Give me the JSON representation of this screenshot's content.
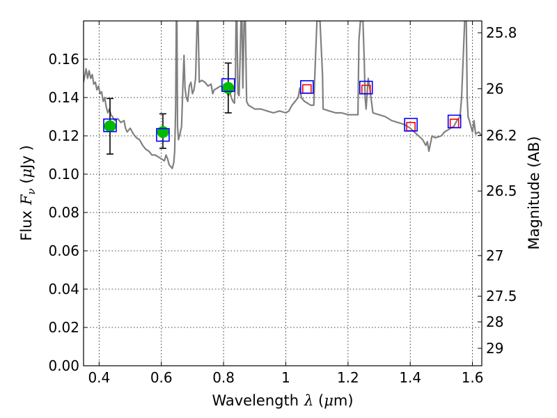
{
  "chart_data": {
    "type": "scatter",
    "xlabel": {
      "prefix": "Wavelength",
      "symbol": "λ",
      "unit_open": " (",
      "unit_mu": "μ",
      "unit_rest": "m)"
    },
    "ylabel": {
      "prefix": "Flux",
      "symbol": "F",
      "subscript": "ν",
      "unit_open": " (",
      "unit_mu": "μ",
      "unit_rest": "Jy )"
    },
    "y2label": "Magnitude (AB)",
    "xlim": [
      0.35,
      1.63
    ],
    "ylim": [
      0.0,
      0.18
    ],
    "x_ticks": [
      0.4,
      0.6,
      0.8,
      1.0,
      1.2,
      1.4,
      1.6
    ],
    "x_tick_labels": [
      "0.4",
      "0.6",
      "0.8",
      "1",
      "1.2",
      "1.4",
      "1.6"
    ],
    "y_ticks": [
      0.0,
      0.02,
      0.04,
      0.06,
      0.08,
      0.1,
      0.12,
      0.14,
      0.16
    ],
    "y_tick_labels": [
      "0.00",
      "0.02",
      "0.04",
      "0.06",
      "0.08",
      "0.10",
      "0.12",
      "0.14",
      "0.16"
    ],
    "y2_ticks": [
      {
        "label": "25.8",
        "flux": 0.1738
      },
      {
        "label": "26",
        "flux": 0.1446
      },
      {
        "label": "26.2",
        "flux": 0.1202
      },
      {
        "label": "26.5",
        "flux": 0.0912
      },
      {
        "label": "27",
        "flux": 0.0575
      },
      {
        "label": "27.5",
        "flux": 0.0363
      },
      {
        "label": "28",
        "flux": 0.0229
      },
      {
        "label": "29",
        "flux": 0.0091
      }
    ],
    "grid": true,
    "series": [
      {
        "style": "line",
        "color": "#808080",
        "points": [
          [
            0.35,
            0.148
          ],
          [
            0.358,
            0.155
          ],
          [
            0.363,
            0.15
          ],
          [
            0.368,
            0.154
          ],
          [
            0.373,
            0.15
          ],
          [
            0.378,
            0.152
          ],
          [
            0.383,
            0.147
          ],
          [
            0.388,
            0.148
          ],
          [
            0.393,
            0.144
          ],
          [
            0.398,
            0.146
          ],
          [
            0.403,
            0.142
          ],
          [
            0.408,
            0.143
          ],
          [
            0.413,
            0.138
          ],
          [
            0.418,
            0.14
          ],
          [
            0.423,
            0.135
          ],
          [
            0.428,
            0.132
          ],
          [
            0.433,
            0.134
          ],
          [
            0.438,
            0.131
          ],
          [
            0.443,
            0.13
          ],
          [
            0.45,
            0.128
          ],
          [
            0.46,
            0.129
          ],
          [
            0.47,
            0.127
          ],
          [
            0.48,
            0.128
          ],
          [
            0.485,
            0.124
          ],
          [
            0.49,
            0.122
          ],
          [
            0.5,
            0.124
          ],
          [
            0.51,
            0.121
          ],
          [
            0.52,
            0.119
          ],
          [
            0.53,
            0.118
          ],
          [
            0.54,
            0.115
          ],
          [
            0.55,
            0.113
          ],
          [
            0.56,
            0.112
          ],
          [
            0.57,
            0.11
          ],
          [
            0.58,
            0.11
          ],
          [
            0.59,
            0.109
          ],
          [
            0.6,
            0.108
          ],
          [
            0.61,
            0.107
          ],
          [
            0.615,
            0.11
          ],
          [
            0.62,
            0.108
          ],
          [
            0.625,
            0.105
          ],
          [
            0.63,
            0.104
          ],
          [
            0.635,
            0.103
          ],
          [
            0.64,
            0.106
          ],
          [
            0.643,
            0.112
          ],
          [
            0.646,
            0.135
          ],
          [
            0.648,
            0.18
          ],
          [
            0.65,
            0.18
          ],
          [
            0.652,
            0.125
          ],
          [
            0.655,
            0.118
          ],
          [
            0.66,
            0.121
          ],
          [
            0.665,
            0.125
          ],
          [
            0.67,
            0.15
          ],
          [
            0.673,
            0.162
          ],
          [
            0.676,
            0.145
          ],
          [
            0.68,
            0.14
          ],
          [
            0.685,
            0.138
          ],
          [
            0.69,
            0.146
          ],
          [
            0.695,
            0.148
          ],
          [
            0.7,
            0.142
          ],
          [
            0.705,
            0.144
          ],
          [
            0.71,
            0.15
          ],
          [
            0.715,
            0.18
          ],
          [
            0.718,
            0.18
          ],
          [
            0.722,
            0.148
          ],
          [
            0.73,
            0.149
          ],
          [
            0.74,
            0.148
          ],
          [
            0.75,
            0.146
          ],
          [
            0.76,
            0.147
          ],
          [
            0.765,
            0.142
          ],
          [
            0.77,
            0.144
          ],
          [
            0.78,
            0.145
          ],
          [
            0.79,
            0.146
          ],
          [
            0.8,
            0.145
          ],
          [
            0.81,
            0.143
          ],
          [
            0.815,
            0.141
          ],
          [
            0.82,
            0.143
          ],
          [
            0.825,
            0.14
          ],
          [
            0.83,
            0.138
          ],
          [
            0.835,
            0.137
          ],
          [
            0.838,
            0.15
          ],
          [
            0.84,
            0.18
          ],
          [
            0.843,
            0.18
          ],
          [
            0.846,
            0.142
          ],
          [
            0.85,
            0.141
          ],
          [
            0.853,
            0.16
          ],
          [
            0.856,
            0.18
          ],
          [
            0.859,
            0.18
          ],
          [
            0.862,
            0.145
          ],
          [
            0.866,
            0.18
          ],
          [
            0.87,
            0.18
          ],
          [
            0.874,
            0.138
          ],
          [
            0.88,
            0.136
          ],
          [
            0.89,
            0.135
          ],
          [
            0.9,
            0.134
          ],
          [
            0.92,
            0.134
          ],
          [
            0.94,
            0.133
          ],
          [
            0.96,
            0.132
          ],
          [
            0.98,
            0.133
          ],
          [
            1.0,
            0.132
          ],
          [
            1.01,
            0.133
          ],
          [
            1.02,
            0.136
          ],
          [
            1.03,
            0.138
          ],
          [
            1.04,
            0.14
          ],
          [
            1.045,
            0.145
          ],
          [
            1.05,
            0.14
          ],
          [
            1.06,
            0.138
          ],
          [
            1.07,
            0.137
          ],
          [
            1.08,
            0.136
          ],
          [
            1.09,
            0.136
          ],
          [
            1.093,
            0.15
          ],
          [
            1.1,
            0.18
          ],
          [
            1.11,
            0.18
          ],
          [
            1.118,
            0.152
          ],
          [
            1.12,
            0.134
          ],
          [
            1.14,
            0.133
          ],
          [
            1.16,
            0.132
          ],
          [
            1.18,
            0.132
          ],
          [
            1.2,
            0.131
          ],
          [
            1.21,
            0.131
          ],
          [
            1.22,
            0.131
          ],
          [
            1.232,
            0.131
          ],
          [
            1.235,
            0.17
          ],
          [
            1.24,
            0.18
          ],
          [
            1.248,
            0.18
          ],
          [
            1.252,
            0.16
          ],
          [
            1.255,
            0.14
          ],
          [
            1.258,
            0.134
          ],
          [
            1.265,
            0.15
          ],
          [
            1.27,
            0.145
          ],
          [
            1.28,
            0.132
          ],
          [
            1.3,
            0.131
          ],
          [
            1.32,
            0.13
          ],
          [
            1.34,
            0.128
          ],
          [
            1.36,
            0.127
          ],
          [
            1.38,
            0.126
          ],
          [
            1.4,
            0.124
          ],
          [
            1.42,
            0.121
          ],
          [
            1.44,
            0.118
          ],
          [
            1.45,
            0.115
          ],
          [
            1.455,
            0.117
          ],
          [
            1.46,
            0.112
          ],
          [
            1.47,
            0.12
          ],
          [
            1.48,
            0.119
          ],
          [
            1.5,
            0.12
          ],
          [
            1.51,
            0.122
          ],
          [
            1.52,
            0.123
          ],
          [
            1.53,
            0.124
          ],
          [
            1.54,
            0.125
          ],
          [
            1.55,
            0.128
          ],
          [
            1.56,
            0.13
          ],
          [
            1.565,
            0.14
          ],
          [
            1.57,
            0.16
          ],
          [
            1.575,
            0.18
          ],
          [
            1.58,
            0.18
          ],
          [
            1.583,
            0.14
          ],
          [
            1.586,
            0.13
          ],
          [
            1.59,
            0.128
          ],
          [
            1.6,
            0.122
          ],
          [
            1.605,
            0.128
          ],
          [
            1.61,
            0.121
          ],
          [
            1.62,
            0.122
          ],
          [
            1.63,
            0.12
          ]
        ]
      },
      {
        "style": "errorbar",
        "color": "#00bb00",
        "marker": "circle",
        "points": [
          {
            "x": 0.435,
            "y": 0.125,
            "yerr_low": 0.0145,
            "yerr_high": 0.0145
          },
          {
            "x": 0.605,
            "y": 0.122,
            "yerr_low": 0.0085,
            "yerr_high": 0.0095
          },
          {
            "x": 0.815,
            "y": 0.145,
            "yerr_low": 0.013,
            "yerr_high": 0.013
          }
        ]
      },
      {
        "style": "scatter",
        "color": "#ff0000",
        "marker": "open-square",
        "points": [
          {
            "x": 1.068,
            "y": 0.1445
          },
          {
            "x": 1.258,
            "y": 0.1442
          },
          {
            "x": 1.402,
            "y": 0.1248
          },
          {
            "x": 1.542,
            "y": 0.1265
          }
        ]
      },
      {
        "style": "scatter",
        "color": "#0000ff",
        "marker": "open-square",
        "points": [
          {
            "x": 0.435,
            "y": 0.1255
          },
          {
            "x": 0.605,
            "y": 0.1205
          },
          {
            "x": 0.815,
            "y": 0.1465
          },
          {
            "x": 1.068,
            "y": 0.1455
          },
          {
            "x": 1.258,
            "y": 0.1452
          },
          {
            "x": 1.402,
            "y": 0.1258
          },
          {
            "x": 1.542,
            "y": 0.1275
          }
        ]
      }
    ]
  }
}
